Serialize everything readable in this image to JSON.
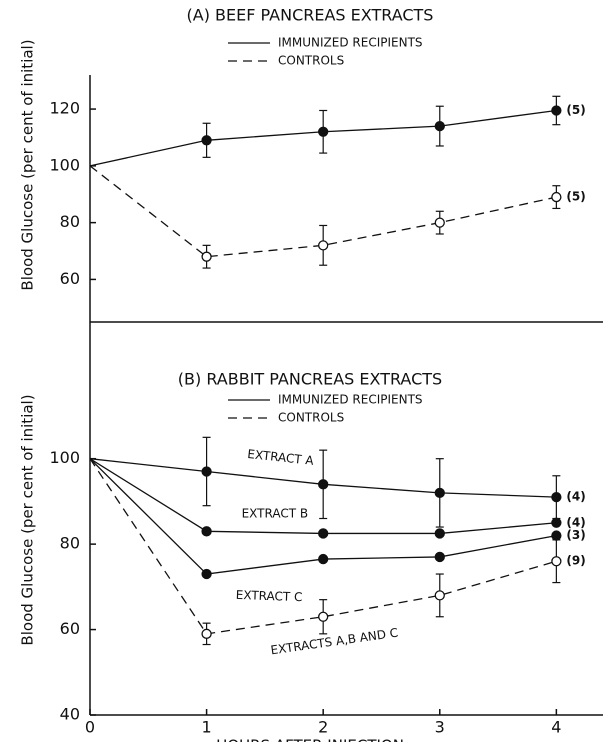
{
  "chart_data": [
    {
      "type": "line",
      "title": "(A) BEEF PANCREAS EXTRACTS",
      "ylabel": "Blood Glucose (per cent of initial)",
      "legend": [
        {
          "label": "IMMUNIZED RECIPIENTS",
          "style": "solid"
        },
        {
          "label": "CONTROLS",
          "style": "dashed"
        }
      ],
      "x": [
        0,
        1,
        2,
        3,
        4
      ],
      "xlim": [
        0,
        4.4
      ],
      "ylim": [
        45,
        132
      ],
      "yticks": [
        60,
        80,
        100,
        120
      ],
      "series": [
        {
          "name": "IMMUNIZED RECIPIENTS",
          "style": "solid",
          "marker": "filled",
          "color": "#111",
          "values": [
            100,
            109,
            112,
            114,
            119.5
          ],
          "errors": [
            null,
            6,
            7.5,
            7,
            5
          ],
          "end_label": "(5)"
        },
        {
          "name": "CONTROLS",
          "style": "dashed",
          "marker": "open",
          "color": "#111",
          "values": [
            100,
            68,
            72,
            80,
            89
          ],
          "errors": [
            null,
            4,
            7,
            4,
            4
          ],
          "end_label": "(5)"
        }
      ]
    },
    {
      "type": "line",
      "title": "(B) RABBIT PANCREAS EXTRACTS",
      "ylabel": "Blood Glucose (per cent of initial)",
      "xlabel": "HOURS AFTER INJECTION",
      "legend": [
        {
          "label": "IMMUNIZED RECIPIENTS",
          "style": "solid"
        },
        {
          "label": "CONTROLS",
          "style": "dashed"
        }
      ],
      "x": [
        0,
        1,
        2,
        3,
        4
      ],
      "xlim": [
        0,
        4.4
      ],
      "xticks": [
        0,
        1,
        2,
        3,
        4
      ],
      "ylim": [
        40,
        132
      ],
      "yticks": [
        40,
        60,
        80,
        100
      ],
      "series": [
        {
          "name": "EXTRACT A",
          "style": "solid",
          "marker": "filled",
          "color": "#111",
          "values": [
            100,
            97,
            94,
            92,
            91
          ],
          "errors": [
            null,
            8,
            8,
            8,
            5
          ],
          "end_label": "(4)"
        },
        {
          "name": "EXTRACT B",
          "style": "solid",
          "marker": "filled",
          "color": "#111",
          "values": [
            100,
            83,
            82.5,
            82.5,
            85
          ],
          "errors": [
            null,
            null,
            null,
            null,
            null
          ],
          "end_label": "(4)"
        },
        {
          "name": "EXTRACT C",
          "style": "solid",
          "marker": "filled",
          "color": "#111",
          "values": [
            100,
            73,
            76.5,
            77,
            82
          ],
          "errors": [
            null,
            null,
            null,
            null,
            null
          ],
          "end_label": "(3)"
        },
        {
          "name": "EXTRACTS A,B AND C",
          "style": "dashed",
          "marker": "open",
          "color": "#111",
          "values": [
            100,
            59,
            63,
            68,
            76
          ],
          "errors": [
            null,
            2.5,
            4,
            5,
            5
          ],
          "end_label": "(9)"
        }
      ]
    }
  ]
}
